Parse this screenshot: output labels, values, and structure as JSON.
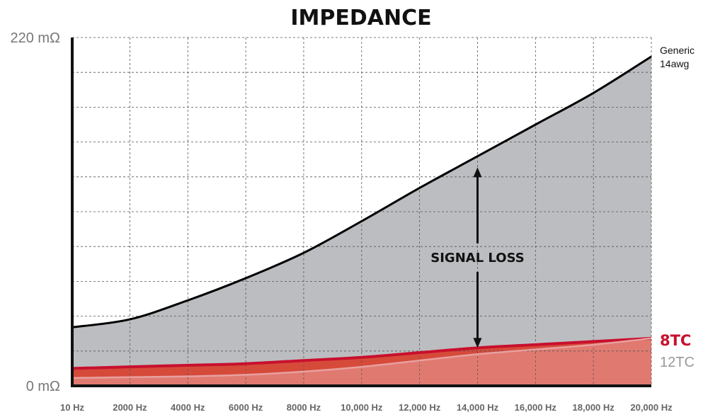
{
  "chart_data": {
    "type": "area",
    "title": "IMPEDANCE",
    "xlabel": "",
    "ylabel": "",
    "x_tick_labels": [
      "10 Hz",
      "2000 Hz",
      "4000 Hz",
      "6000 Hz",
      "8000 Hz",
      "10,000 Hz",
      "12,000 Hz",
      "14,000 Hz",
      "16,000 Hz",
      "18,000 Hz",
      "20,000 Hz"
    ],
    "y_tick_labels": [
      "220 mΩ",
      "0 mΩ"
    ],
    "xlim": [
      10,
      20000
    ],
    "ylim": [
      0,
      220
    ],
    "grid": true,
    "x": [
      10,
      2000,
      4000,
      6000,
      8000,
      10000,
      12000,
      14000,
      16000,
      18000,
      20000
    ],
    "series": [
      {
        "name": "Generic 14awg",
        "name_lines": [
          "Generic",
          "14awg"
        ],
        "color": "#000000",
        "fill": "#bcbdc0",
        "values": [
          37,
          42,
          54,
          68,
          84,
          104,
          125,
          145,
          165,
          185,
          208
        ]
      },
      {
        "name": "8TC",
        "color": "#c8102e",
        "fill": "#d64a3a",
        "values": [
          11,
          12,
          13,
          14,
          16,
          18,
          21,
          24,
          26,
          28,
          30
        ]
      },
      {
        "name": "12TC",
        "color": "#e8a0a0",
        "fill": "#e07a70",
        "values": [
          5,
          5.5,
          6,
          7,
          9,
          12,
          16,
          20,
          23,
          26,
          30
        ]
      }
    ],
    "annotation": {
      "text": "SIGNAL LOSS",
      "at_x": 14000,
      "from_y": 24,
      "to_y": 138
    }
  }
}
